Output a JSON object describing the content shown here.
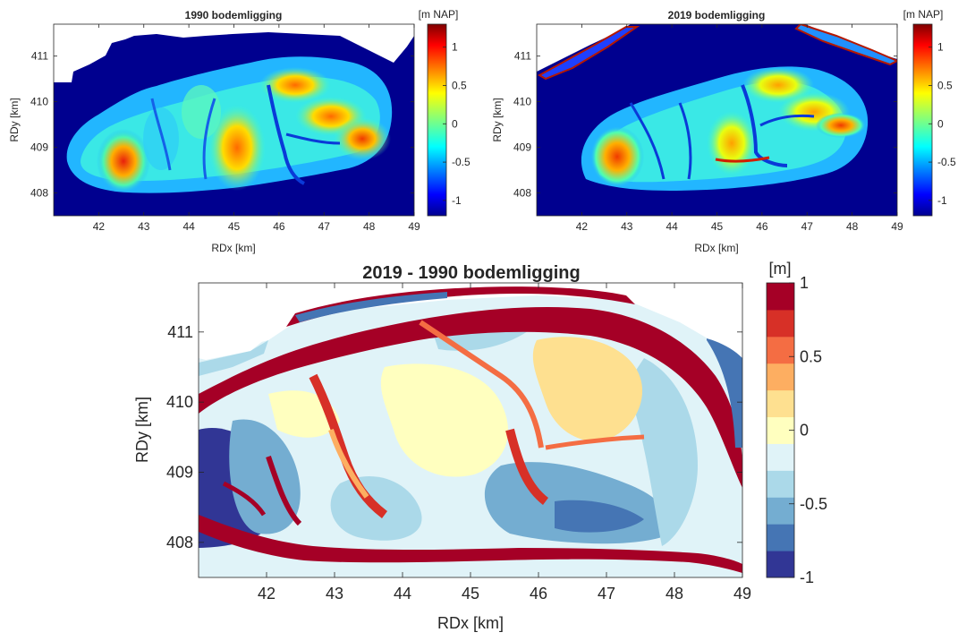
{
  "chart_data": [
    {
      "type": "heatmap",
      "title": "1990 bodemligging",
      "xlabel": "RDx [km]",
      "ylabel": "RDy [km]",
      "xlim": [
        41.0,
        49.0
      ],
      "ylim": [
        407.5,
        411.7
      ],
      "x_ticks": [
        "42",
        "43",
        "44",
        "45",
        "46",
        "47",
        "48",
        "49"
      ],
      "y_ticks": [
        "408",
        "409",
        "410",
        "411"
      ],
      "colorbar": {
        "label": "[m NAP]",
        "range": [
          -1.2,
          1.3
        ],
        "ticks": [
          "-1",
          "-0.5",
          "0",
          "0.5",
          "1"
        ],
        "colormap": "jet"
      },
      "background_value": -1.2,
      "shoal_outline_y_top_km": [
        [
          41.0,
          411.2
        ],
        [
          42.0,
          411.25
        ],
        [
          42.8,
          411.45
        ],
        [
          43.8,
          411.6
        ],
        [
          45.0,
          411.7
        ],
        [
          46.5,
          411.65
        ],
        [
          47.8,
          411.4
        ],
        [
          48.6,
          411.15
        ],
        [
          49.0,
          411.05
        ]
      ],
      "shoal_outline_y_bottom_km": [
        [
          41.0,
          407.6
        ],
        [
          42.0,
          407.8
        ],
        [
          43.0,
          407.85
        ],
        [
          45.0,
          407.95
        ],
        [
          46.5,
          408.1
        ],
        [
          47.5,
          408.25
        ],
        [
          48.6,
          408.4
        ]
      ],
      "shoals": [
        {
          "x": 42.8,
          "y": 408.7,
          "depth_m": 1.0
        },
        {
          "x": 45.3,
          "y": 409.2,
          "depth_m": 0.6
        },
        {
          "x": 46.8,
          "y": 410.4,
          "depth_m": 0.6
        },
        {
          "x": 47.5,
          "y": 409.9,
          "depth_m": 0.5
        },
        {
          "x": 48.0,
          "y": 409.3,
          "depth_m": 0.9
        },
        {
          "x": 41.6,
          "y": 408.8,
          "depth_m": 0.1
        }
      ]
    },
    {
      "type": "heatmap",
      "title": "2019 bodemligging",
      "xlabel": "RDx [km]",
      "ylabel": "RDy [km]",
      "xlim": [
        41.0,
        49.0
      ],
      "ylim": [
        407.5,
        411.7
      ],
      "x_ticks": [
        "42",
        "43",
        "44",
        "45",
        "46",
        "47",
        "48",
        "49"
      ],
      "y_ticks": [
        "408",
        "409",
        "410",
        "411"
      ],
      "colorbar": {
        "label": "[m NAP]",
        "range": [
          -1.2,
          1.3
        ],
        "ticks": [
          "-1",
          "-0.5",
          "0",
          "0.5",
          "1"
        ],
        "colormap": "jet"
      },
      "background_value": -1.2,
      "shoals": [
        {
          "x": 42.9,
          "y": 408.8,
          "depth_m": 0.9
        },
        {
          "x": 45.4,
          "y": 409.0,
          "depth_m": 0.5
        },
        {
          "x": 46.8,
          "y": 410.4,
          "depth_m": 0.4
        },
        {
          "x": 47.5,
          "y": 409.8,
          "depth_m": 0.3
        },
        {
          "x": 48.1,
          "y": 409.4,
          "depth_m": 0.7
        },
        {
          "x": 44.0,
          "y": 409.6,
          "depth_m": -0.1
        }
      ]
    },
    {
      "type": "heatmap",
      "title": "2019 - 1990 bodemligging",
      "xlabel": "RDx [km]",
      "ylabel": "RDy [km]",
      "xlim": [
        41.0,
        49.0
      ],
      "ylim": [
        407.5,
        411.7
      ],
      "x_ticks": [
        "42",
        "43",
        "44",
        "45",
        "46",
        "47",
        "48",
        "49"
      ],
      "y_ticks": [
        "408",
        "409",
        "410",
        "411"
      ],
      "colorbar": {
        "label": "[m]",
        "range": [
          -1,
          1
        ],
        "ticks": [
          "-1",
          "-0.5",
          "0",
          "0.5",
          "1"
        ],
        "levels": 10,
        "colors": [
          "#313695",
          "#4575b4",
          "#74add1",
          "#abd9e9",
          "#e0f3f8",
          "#ffffbf",
          "#fee090",
          "#fdae61",
          "#f46d43",
          "#d73027",
          "#a50026"
        ]
      },
      "features": [
        {
          "kind": "erosion_band",
          "description_value": -1.0
        },
        {
          "kind": "accretion_channel_edges",
          "description_value": 1.0
        }
      ]
    }
  ]
}
